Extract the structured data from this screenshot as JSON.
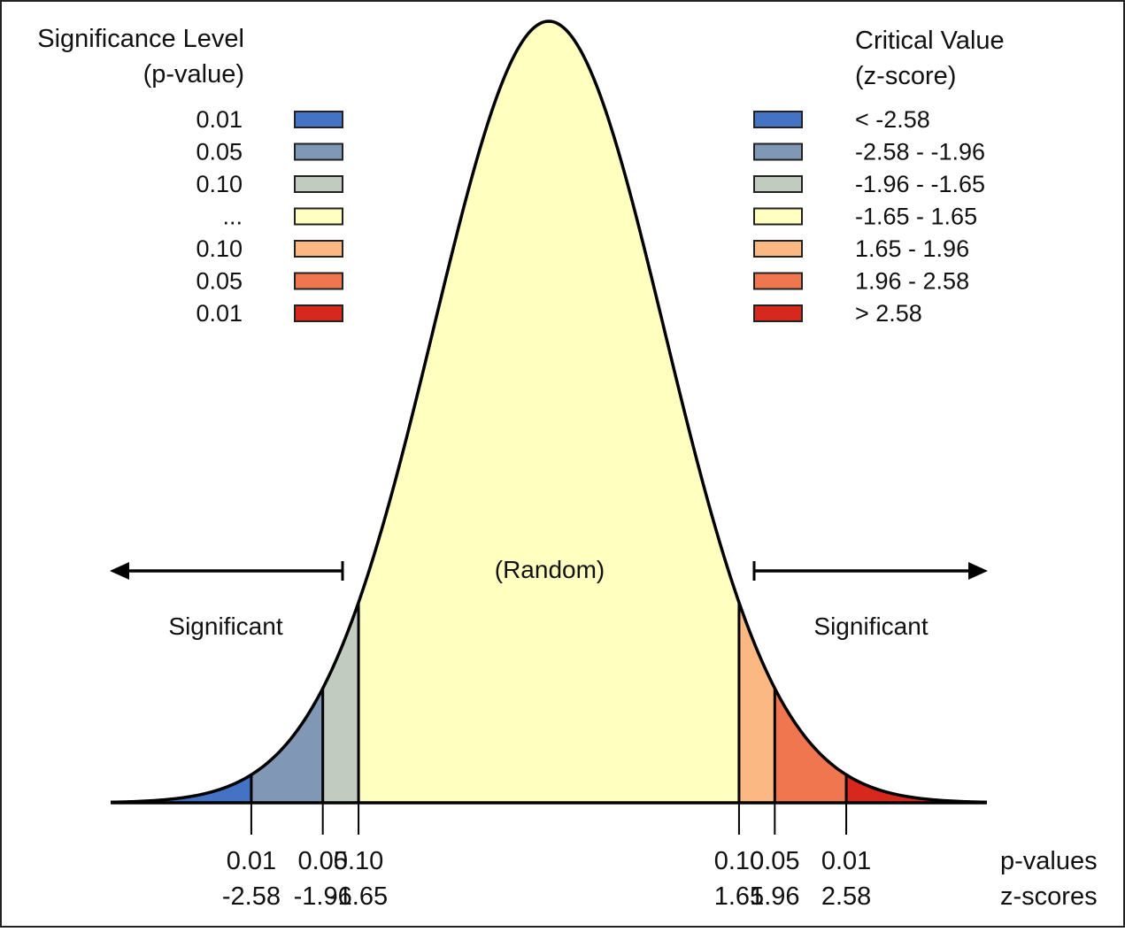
{
  "legend_left": {
    "title_line1": "Significance Level",
    "title_line2": "(p-value)",
    "entries": [
      "0.01",
      "0.05",
      "0.10",
      "...",
      "0.10",
      "0.05",
      "0.01"
    ]
  },
  "legend_right": {
    "title_line1": "Critical Value",
    "title_line2": "(z-score)",
    "entries": [
      "< -2.58",
      "-2.58 - -1.96",
      "-1.96 - -1.65",
      "-1.65 - 1.65",
      "1.65 - 1.96",
      "1.96 - 2.58",
      "> 2.58"
    ]
  },
  "colors": [
    "#4472c4",
    "#8197b6",
    "#c2cbc0",
    "#ffffbf",
    "#fbb883",
    "#f07650",
    "#d7281e"
  ],
  "labels": {
    "random": "(Random)",
    "significant_left": "Significant",
    "significant_right": "Significant",
    "p_values": "p-values",
    "z_scores": "z-scores"
  },
  "thresholds": [
    {
      "z": -2.58,
      "p_label": "0.01",
      "z_label": "-2.58"
    },
    {
      "z": -1.96,
      "p_label": "0.05",
      "z_label": "-1.96"
    },
    {
      "z": -1.65,
      "p_label": "0.10",
      "z_label": "-1.65"
    },
    {
      "z": 1.65,
      "p_label": "0.10",
      "z_label": "1.65"
    },
    {
      "z": 1.96,
      "p_label": "0.05",
      "z_label": "1.96"
    },
    {
      "z": 2.58,
      "p_label": "0.01",
      "z_label": "2.58"
    }
  ],
  "z_range": [
    -3.8,
    3.8
  ]
}
